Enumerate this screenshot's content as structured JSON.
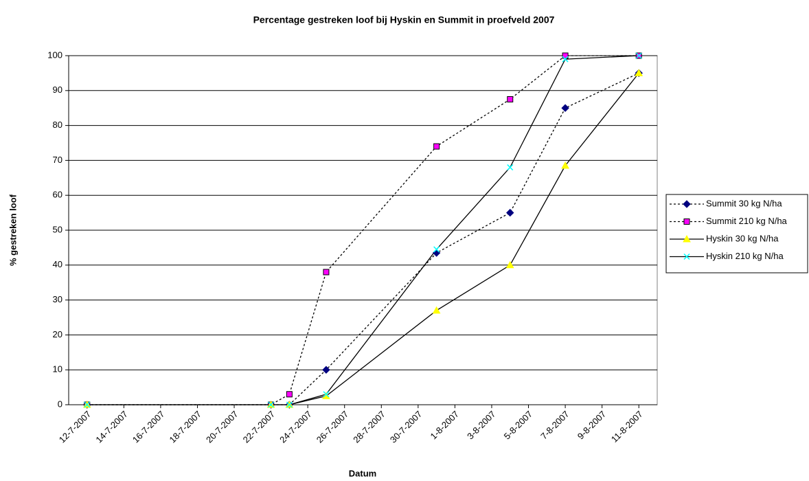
{
  "chart_data": {
    "type": "line",
    "title": "Percentage gestreken loof bij Hyskin en Summit in proefveld 2007",
    "xlabel": "Datum",
    "ylabel": "% gestreken loof",
    "x": [
      "2007-07-12",
      "2007-07-22",
      "2007-07-23",
      "2007-07-25",
      "2007-07-31",
      "2007-08-04",
      "2007-08-07",
      "2007-08-11"
    ],
    "series": [
      {
        "name": "Summit 30 kg N/ha",
        "color": "#000080",
        "marker": "diamond",
        "line_style": "dotted",
        "values": [
          0,
          0,
          0,
          10,
          43.5,
          55,
          85,
          95
        ]
      },
      {
        "name": "Summit 210 kg N/ha",
        "color": "#ff00ff",
        "marker": "square",
        "line_style": "dotted",
        "values": [
          0,
          0,
          3,
          38,
          74,
          87.5,
          100,
          100
        ]
      },
      {
        "name": "Hyskin 30 kg N/ha",
        "color": "#ffff00",
        "marker": "triangle",
        "line_style": "solid",
        "values": [
          0,
          0,
          0,
          2.5,
          27,
          40,
          68.5,
          95
        ]
      },
      {
        "name": "Hyskin 210 kg N/ha",
        "color": "#00ffff",
        "marker": "x",
        "line_style": "solid",
        "values": [
          0,
          0,
          0,
          3,
          44.5,
          68,
          99,
          100
        ]
      }
    ],
    "xlim": [
      "2007-07-11",
      "2007-08-12"
    ],
    "xticks": [
      {
        "value": "2007-07-12",
        "label": "12-7-2007"
      },
      {
        "value": "2007-07-14",
        "label": "14-7-2007"
      },
      {
        "value": "2007-07-16",
        "label": "16-7-2007"
      },
      {
        "value": "2007-07-18",
        "label": "18-7-2007"
      },
      {
        "value": "2007-07-20",
        "label": "20-7-2007"
      },
      {
        "value": "2007-07-22",
        "label": "22-7-2007"
      },
      {
        "value": "2007-07-24",
        "label": "24-7-2007"
      },
      {
        "value": "2007-07-26",
        "label": "26-7-2007"
      },
      {
        "value": "2007-07-28",
        "label": "28-7-2007"
      },
      {
        "value": "2007-07-30",
        "label": "30-7-2007"
      },
      {
        "value": "2007-08-01",
        "label": "1-8-2007"
      },
      {
        "value": "2007-08-03",
        "label": "3-8-2007"
      },
      {
        "value": "2007-08-05",
        "label": "5-8-2007"
      },
      {
        "value": "2007-08-07",
        "label": "7-8-2007"
      },
      {
        "value": "2007-08-09",
        "label": "9-8-2007"
      },
      {
        "value": "2007-08-11",
        "label": "11-8-2007"
      }
    ],
    "ylim": [
      0,
      100
    ],
    "yticks": [
      0,
      10,
      20,
      30,
      40,
      50,
      60,
      70,
      80,
      90,
      100
    ],
    "grid": true,
    "legend": "right"
  }
}
